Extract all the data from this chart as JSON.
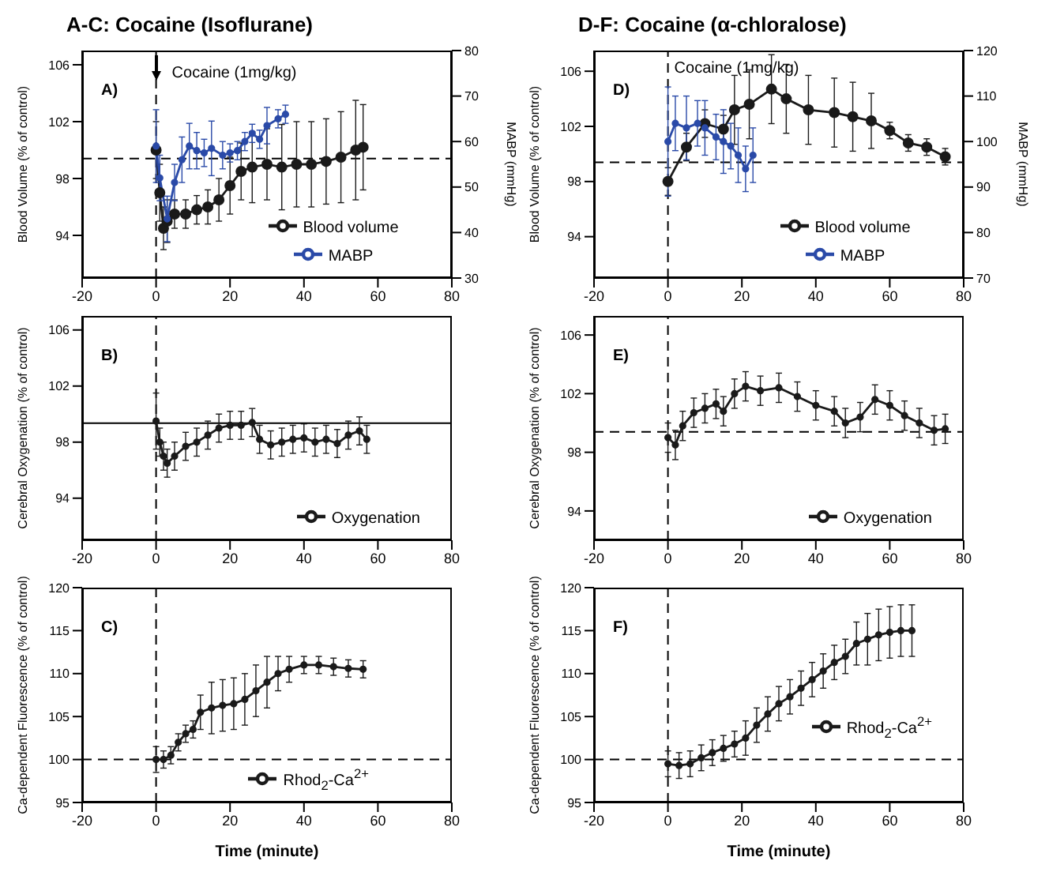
{
  "chart_data": [
    {
      "type": "line",
      "title": "A-C: Cocaine (Isoflurane)",
      "ylabel": "Blood Volume (% of control)",
      "y2label": "MABP (mmHg)",
      "xlim": [
        -20,
        80
      ],
      "xticks": [
        -20,
        0,
        20,
        40,
        60,
        80
      ],
      "ylim": [
        91,
        107
      ],
      "yticks": [
        94,
        98,
        102,
        106
      ],
      "y2lim": [
        30,
        80
      ],
      "y2ticks": [
        30,
        40,
        50,
        60,
        70,
        80
      ],
      "legend": "bottom right",
      "marker": "circle",
      "line_style": "solid",
      "annotations": [
        "A)",
        {
          "text": "Cocaine (1mg/kg)",
          "x": 0,
          "y": 105.5
        }
      ],
      "ref_lines": [
        {
          "axis": "x",
          "value": 0,
          "line_style": "dashed",
          "color": "#000000"
        },
        {
          "axis": "y",
          "value": 99.4,
          "line_style": "dashed",
          "color": "#000000"
        }
      ],
      "series": [
        {
          "name": "Blood volume",
          "color": "#1a1a1a",
          "x": [
            0,
            1,
            2,
            3,
            5,
            8,
            11,
            14,
            17,
            20,
            23,
            26,
            30,
            34,
            38,
            42,
            46,
            50,
            54,
            56
          ],
          "values": [
            100,
            97,
            94.5,
            95,
            95.5,
            95.5,
            95.8,
            96,
            96.5,
            97.5,
            98.5,
            98.8,
            99,
            98.8,
            99,
            99,
            99.2,
            99.5,
            100,
            100.2
          ],
          "errors": [
            2,
            2,
            1.5,
            1.5,
            1,
            1,
            1,
            1.2,
            1.5,
            2,
            2,
            2.5,
            2.5,
            3,
            3,
            3,
            3,
            3.2,
            3.5,
            3
          ]
        },
        {
          "name": "MABP",
          "color": "#2a4aa8",
          "axis": "y2",
          "x": [
            0,
            1,
            3,
            5,
            7,
            9,
            11,
            13,
            15,
            18,
            20,
            22,
            24,
            26,
            28,
            30,
            33,
            35
          ],
          "values": [
            59,
            52,
            43,
            51,
            56,
            59,
            58,
            57.5,
            58.5,
            57,
            57.5,
            58,
            60,
            61.8,
            60.5,
            63.5,
            65,
            66
          ],
          "errors": [
            8,
            5,
            5,
            4,
            5,
            5,
            4,
            3,
            6,
            3,
            2,
            2,
            2,
            2,
            2,
            4,
            2,
            2
          ]
        }
      ]
    },
    {
      "type": "line",
      "title": "D-F: Cocaine (α-chloralose)",
      "ylabel": "Blood Volume (% of control)",
      "y2label": "MABP (mmHg)",
      "xlim": [
        -20,
        80
      ],
      "xticks": [
        -20,
        0,
        20,
        40,
        60,
        80
      ],
      "ylim": [
        91,
        107.5
      ],
      "yticks": [
        94,
        98,
        102,
        106
      ],
      "y2lim": [
        70,
        120
      ],
      "y2ticks": [
        70,
        80,
        90,
        100,
        110,
        120
      ],
      "legend": "bottom right",
      "marker": "circle",
      "line_style": "solid",
      "annotations": [
        "D)",
        {
          "text": "Cocaine (1mg/kg)",
          "x": 0,
          "y": 106.3
        }
      ],
      "ref_lines": [
        {
          "axis": "x",
          "value": 0,
          "line_style": "dashed",
          "color": "#000000"
        },
        {
          "axis": "y",
          "value": 99.4,
          "line_style": "dashed",
          "color": "#000000"
        }
      ],
      "series": [
        {
          "name": "Blood volume",
          "color": "#1a1a1a",
          "x": [
            0,
            5,
            10,
            15,
            18,
            22,
            28,
            32,
            38,
            45,
            50,
            55,
            60,
            65,
            70,
            75
          ],
          "values": [
            98,
            100.5,
            102.2,
            101.8,
            103.2,
            103.6,
            104.7,
            104,
            103.2,
            103,
            102.7,
            102.4,
            101.7,
            100.8,
            100.5,
            99.8
          ],
          "errors": [
            1,
            1,
            1,
            1,
            2.5,
            2.5,
            2.5,
            2.5,
            2.5,
            2.5,
            2.5,
            2,
            0.6,
            0.6,
            0.6,
            0.6
          ]
        },
        {
          "name": "MABP",
          "color": "#2a4aa8",
          "axis": "y2",
          "x": [
            0,
            2,
            5,
            8,
            10,
            13,
            15,
            17,
            19,
            21,
            23
          ],
          "values": [
            100,
            104,
            103,
            104,
            103,
            101,
            100,
            99,
            97,
            94,
            97
          ],
          "errors": [
            12,
            6,
            7,
            5,
            6,
            5,
            7,
            5,
            6,
            5,
            6
          ]
        }
      ]
    },
    {
      "type": "line",
      "ylabel": "Cerebral Oxygenation (% of control)",
      "xlim": [
        -20,
        80
      ],
      "xticks": [
        -20,
        0,
        20,
        40,
        60,
        80
      ],
      "ylim": [
        91,
        107
      ],
      "yticks": [
        94,
        98,
        102,
        106
      ],
      "legend": "bottom right",
      "marker": "circle",
      "line_style": "solid",
      "annotations": [
        "B)"
      ],
      "ref_lines": [
        {
          "axis": "x",
          "value": 0,
          "line_style": "dashed",
          "color": "#000000"
        },
        {
          "axis": "y",
          "value": 99.35,
          "line_style": "solid",
          "color": "#000000"
        }
      ],
      "series": [
        {
          "name": "Oxygenation",
          "color": "#1a1a1a",
          "x": [
            0,
            1,
            2,
            3,
            5,
            8,
            11,
            14,
            17,
            20,
            23,
            26,
            28,
            31,
            34,
            37,
            40,
            43,
            46,
            49,
            52,
            55,
            57
          ],
          "values": [
            99.5,
            98,
            97,
            96.5,
            97,
            97.7,
            98,
            98.5,
            99,
            99.2,
            99.2,
            99.4,
            98.2,
            97.8,
            98,
            98.2,
            98.3,
            98,
            98.2,
            97.9,
            98.5,
            98.8,
            98.2
          ],
          "errors": [
            2,
            1,
            1,
            1,
            1,
            1,
            1,
            1,
            1,
            1,
            1,
            1,
            1,
            1,
            1,
            1,
            1,
            1,
            1,
            1,
            1,
            1,
            1
          ]
        }
      ]
    },
    {
      "type": "line",
      "ylabel": "Cerebral Oxygenation (% of control)",
      "xlim": [
        -20,
        80
      ],
      "xticks": [
        -20,
        0,
        20,
        40,
        60,
        80
      ],
      "ylim": [
        92,
        107.3
      ],
      "yticks": [
        94,
        98,
        102,
        106
      ],
      "legend": "bottom right",
      "marker": "circle",
      "line_style": "solid",
      "annotations": [
        "E)"
      ],
      "ref_lines": [
        {
          "axis": "x",
          "value": 0,
          "line_style": "dashed",
          "color": "#000000"
        },
        {
          "axis": "y",
          "value": 99.4,
          "line_style": "dashed",
          "color": "#000000"
        }
      ],
      "series": [
        {
          "name": "Oxygenation",
          "color": "#1a1a1a",
          "x": [
            0,
            2,
            4,
            7,
            10,
            13,
            15,
            18,
            21,
            25,
            30,
            35,
            40,
            45,
            48,
            52,
            56,
            60,
            64,
            68,
            72,
            75
          ],
          "values": [
            99,
            98.5,
            99.8,
            100.7,
            101,
            101.3,
            100.8,
            102,
            102.5,
            102.2,
            102.4,
            101.8,
            101.2,
            100.8,
            100,
            100.4,
            101.6,
            101.2,
            100.5,
            100,
            99.5,
            99.6
          ],
          "errors": [
            1,
            1,
            1,
            1,
            1,
            1,
            1,
            1,
            1,
            1,
            1,
            1,
            1,
            1,
            1,
            1,
            1,
            1,
            1,
            1,
            1,
            1
          ]
        }
      ]
    },
    {
      "type": "line",
      "ylabel": "Ca-dependent Fluorescence (% of control)",
      "xlabel": "Time (minute)",
      "xlim": [
        -20,
        80
      ],
      "xticks": [
        -20,
        0,
        20,
        40,
        60,
        80
      ],
      "ylim": [
        95,
        120
      ],
      "yticks": [
        95,
        100,
        105,
        110,
        115,
        120
      ],
      "legend": "bottom",
      "marker": "circle",
      "line_style": "solid",
      "annotations": [
        "C)"
      ],
      "ref_lines": [
        {
          "axis": "x",
          "value": 0,
          "line_style": "dashed",
          "color": "#000000"
        },
        {
          "axis": "y",
          "value": 100,
          "line_style": "dashed",
          "color": "#000000"
        }
      ],
      "series": [
        {
          "name": "Rhod$_{2}$-Ca$^{2+}$",
          "color": "#1a1a1a",
          "x": [
            0,
            2,
            4,
            6,
            8,
            10,
            12,
            15,
            18,
            21,
            24,
            27,
            30,
            33,
            36,
            40,
            44,
            48,
            52,
            56
          ],
          "values": [
            100,
            100,
            100.5,
            102,
            103,
            103.5,
            105.5,
            106,
            106.3,
            106.5,
            107,
            108,
            109,
            110,
            110.5,
            111,
            111,
            110.8,
            110.6,
            110.5
          ],
          "errors": [
            1.5,
            1,
            1,
            1,
            1,
            1,
            2,
            3,
            3,
            3,
            3,
            3,
            3,
            2,
            1.5,
            1,
            1,
            1,
            1,
            1
          ]
        }
      ]
    },
    {
      "type": "line",
      "ylabel": "Ca-dependent Fluorescence (% of control)",
      "xlabel": "Time (minute)",
      "xlim": [
        -20,
        80
      ],
      "xticks": [
        -20,
        0,
        20,
        40,
        60,
        80
      ],
      "ylim": [
        95,
        120
      ],
      "yticks": [
        95,
        100,
        105,
        110,
        115,
        120
      ],
      "legend": "right",
      "marker": "circle",
      "line_style": "solid",
      "annotations": [
        "F)"
      ],
      "ref_lines": [
        {
          "axis": "x",
          "value": 0,
          "line_style": "dashed",
          "color": "#000000"
        },
        {
          "axis": "y",
          "value": 100,
          "line_style": "dashed",
          "color": "#000000"
        }
      ],
      "series": [
        {
          "name": "Rhod$_{2}$-Ca$^{2+}$",
          "color": "#1a1a1a",
          "x": [
            0,
            3,
            6,
            9,
            12,
            15,
            18,
            21,
            24,
            27,
            30,
            33,
            36,
            39,
            42,
            45,
            48,
            51,
            54,
            57,
            60,
            63,
            66
          ],
          "values": [
            99.5,
            99.3,
            99.5,
            100.2,
            100.8,
            101.3,
            101.8,
            102.5,
            104,
            105.3,
            106.5,
            107.3,
            108.3,
            109.3,
            110.3,
            111.3,
            112,
            113.5,
            114,
            114.5,
            114.8,
            115,
            115
          ],
          "errors": [
            1.5,
            1.5,
            1.5,
            1.5,
            1.5,
            1.5,
            1.5,
            2,
            2,
            2,
            2,
            2,
            2,
            2,
            2,
            2,
            2,
            2.5,
            3,
            3,
            3,
            3,
            3
          ]
        }
      ]
    }
  ]
}
